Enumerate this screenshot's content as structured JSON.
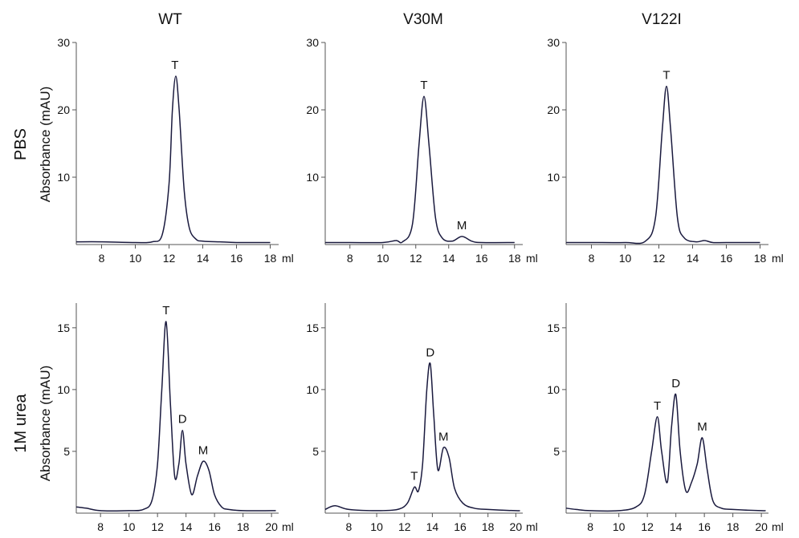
{
  "figure": {
    "columns": [
      "WT",
      "V30M",
      "V122I"
    ],
    "rows": [
      "PBS",
      "1M urea"
    ],
    "ylabel": "Absorbance (mAU)",
    "x_unit": "ml"
  },
  "colors": {
    "trace": "#1a1a3e",
    "axis": "#555555"
  },
  "chart_data": [
    {
      "type": "line",
      "title": "WT",
      "row": "PBS",
      "xlim": [
        6.5,
        18.5
      ],
      "ylim": [
        0,
        30
      ],
      "xticks": [
        8,
        10,
        12,
        14,
        16,
        18
      ],
      "yticks": [
        10,
        20,
        30
      ],
      "x": [
        6.5,
        8,
        10,
        11,
        11.6,
        12.0,
        12.2,
        12.4,
        12.6,
        12.9,
        13.2,
        13.6,
        14,
        15,
        16,
        18
      ],
      "y": [
        0.4,
        0.4,
        0.3,
        0.4,
        1.5,
        9,
        20,
        25,
        20,
        8,
        2.5,
        0.8,
        0.5,
        0.4,
        0.3,
        0.3
      ],
      "peaks": [
        {
          "label": "T",
          "x": 12.35,
          "y": 25
        }
      ]
    },
    {
      "type": "line",
      "title": "V30M",
      "row": "PBS",
      "xlim": [
        6.5,
        18.5
      ],
      "ylim": [
        0,
        30
      ],
      "xticks": [
        8,
        10,
        12,
        14,
        16,
        18
      ],
      "yticks": [
        10,
        20,
        30
      ],
      "x": [
        6.5,
        8,
        10,
        10.8,
        11.2,
        11.8,
        12.2,
        12.5,
        12.8,
        13.2,
        13.6,
        14.2,
        14.8,
        15.4,
        16,
        18
      ],
      "y": [
        0.3,
        0.3,
        0.3,
        0.6,
        0.4,
        3,
        15,
        22,
        15,
        4,
        1,
        0.5,
        1.2,
        0.5,
        0.3,
        0.3
      ],
      "peaks": [
        {
          "label": "T",
          "x": 12.5,
          "y": 22
        },
        {
          "label": "M",
          "x": 14.8,
          "y": 1.2
        }
      ]
    },
    {
      "type": "line",
      "title": "V122I",
      "row": "PBS",
      "xlim": [
        6.5,
        18.5
      ],
      "ylim": [
        0,
        30
      ],
      "xticks": [
        8,
        10,
        12,
        14,
        16,
        18
      ],
      "yticks": [
        10,
        20,
        30
      ],
      "x": [
        6.5,
        8,
        10,
        11.2,
        11.8,
        12.2,
        12.45,
        12.7,
        13.1,
        13.5,
        14.2,
        14.7,
        15.2,
        16,
        18
      ],
      "y": [
        0.3,
        0.3,
        0.3,
        0.5,
        4,
        17,
        23.5,
        17,
        4,
        1,
        0.4,
        0.6,
        0.3,
        0.3,
        0.3
      ],
      "peaks": [
        {
          "label": "T",
          "x": 12.45,
          "y": 23.5
        }
      ]
    },
    {
      "type": "line",
      "title": "WT",
      "row": "1M urea",
      "xlim": [
        6.3,
        20.5
      ],
      "ylim": [
        0,
        17
      ],
      "xticks": [
        8,
        10,
        12,
        14,
        16,
        18,
        20
      ],
      "yticks": [
        5,
        10,
        15
      ],
      "x": [
        6.3,
        7,
        8,
        10,
        11,
        11.6,
        12.0,
        12.3,
        12.6,
        12.9,
        13.2,
        13.5,
        13.75,
        14.0,
        14.4,
        14.8,
        15.2,
        15.6,
        16.0,
        16.5,
        17,
        18,
        20,
        20.3
      ],
      "y": [
        0.5,
        0.4,
        0.2,
        0.2,
        0.3,
        1,
        4,
        10,
        15.5,
        9,
        3,
        4,
        6.7,
        4,
        1.5,
        3,
        4.2,
        3.5,
        1.5,
        0.5,
        0.3,
        0.2,
        0.2,
        0.2
      ],
      "peaks": [
        {
          "label": "T",
          "x": 12.6,
          "y": 15.5
        },
        {
          "label": "D",
          "x": 13.75,
          "y": 6.7
        },
        {
          "label": "M",
          "x": 15.2,
          "y": 4.2
        }
      ]
    },
    {
      "type": "line",
      "title": "V30M",
      "row": "1M urea",
      "xlim": [
        6.3,
        20.5
      ],
      "ylim": [
        0,
        17
      ],
      "xticks": [
        8,
        10,
        12,
        14,
        16,
        18,
        20
      ],
      "yticks": [
        5,
        10,
        15
      ],
      "x": [
        6.3,
        7,
        8,
        10,
        11.5,
        12.2,
        12.7,
        13.0,
        13.3,
        13.6,
        13.85,
        14.1,
        14.4,
        14.8,
        15.2,
        15.6,
        16.2,
        17,
        18,
        20,
        20.3
      ],
      "y": [
        0.3,
        0.6,
        0.3,
        0.2,
        0.3,
        0.8,
        2.1,
        1.8,
        4,
        10,
        12.1,
        8,
        3.5,
        5.3,
        4.5,
        2,
        0.8,
        0.4,
        0.3,
        0.2,
        0.2
      ],
      "peaks": [
        {
          "label": "T",
          "x": 12.7,
          "y": 2.1
        },
        {
          "label": "D",
          "x": 13.85,
          "y": 12.1
        },
        {
          "label": "M",
          "x": 14.8,
          "y": 5.3
        }
      ]
    },
    {
      "type": "line",
      "title": "V122I",
      "row": "1M urea",
      "xlim": [
        6.3,
        20.5
      ],
      "ylim": [
        0,
        17
      ],
      "xticks": [
        8,
        10,
        12,
        14,
        16,
        18,
        20
      ],
      "yticks": [
        5,
        10,
        15
      ],
      "x": [
        6.3,
        7,
        8,
        10,
        11.2,
        11.8,
        12.3,
        12.7,
        13.0,
        13.4,
        13.7,
        14.0,
        14.3,
        14.7,
        15.1,
        15.5,
        15.85,
        16.2,
        16.6,
        17.2,
        18,
        20,
        20.3
      ],
      "y": [
        0.4,
        0.3,
        0.2,
        0.2,
        0.5,
        1.5,
        5,
        7.8,
        5,
        2.5,
        7,
        9.6,
        5,
        1.8,
        2.5,
        4,
        6.1,
        3.5,
        1,
        0.4,
        0.3,
        0.2,
        0.2
      ],
      "peaks": [
        {
          "label": "T",
          "x": 12.7,
          "y": 7.8
        },
        {
          "label": "D",
          "x": 14.0,
          "y": 9.6
        },
        {
          "label": "M",
          "x": 15.85,
          "y": 6.1
        }
      ]
    }
  ]
}
